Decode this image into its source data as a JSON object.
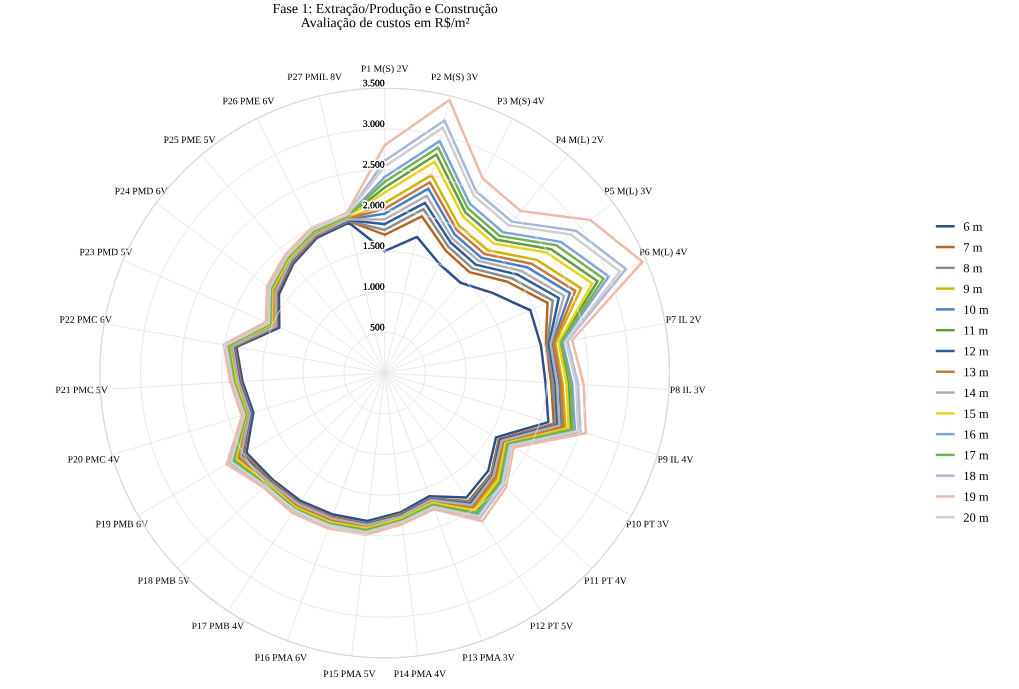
{
  "chart_data": {
    "type": "radar",
    "title": "Fase 1: Extração/Produção e Construção\nAvaliação de custos em R$/m²",
    "categories": [
      "P1 M(S) 2V",
      "P2 M(S) 3V",
      "P3 M(S) 4V",
      "P4 M(L) 2V",
      "P5 M(L) 3V",
      "P6 M(L) 4V",
      "P7 IL 2V",
      "P8 IL 3V",
      "P9 IL 4V",
      "P10 PT 3V",
      "P11 PT 4V",
      "P12 PT 5V",
      "P13 PMA 3V",
      "P14 PMA 4V",
      "P15 PMA 5V",
      "P16 PMA 6V",
      "P17 PMB 4V",
      "P18 PMB 5V",
      "P19 PMB 6V",
      "P20 PMC 4V",
      "P21 PMC 5V",
      "P22 PMC 6V",
      "P23 PMD 5V",
      "P24 PMD 6V",
      "P25 PME 5V",
      "P26 PME 6V",
      "P27 PMIL 8V"
    ],
    "series": [
      {
        "name": "6 m",
        "color": "#2f4f8a",
        "values": [
          1500,
          1720,
          1500,
          1450,
          1650,
          1950,
          1950,
          1980,
          2100,
          1580,
          1750,
          1830,
          1610,
          1720,
          1830,
          1850,
          1880,
          1900,
          1960,
          1685,
          1750,
          1850,
          1410,
          1620,
          1750,
          1860,
          1900
        ]
      },
      {
        "name": "7 m",
        "color": "#b5651d",
        "values": [
          1700,
          1980,
          1680,
          1620,
          1880,
          2180,
          2010,
          2050,
          2170,
          1620,
          1800,
          1880,
          1640,
          1740,
          1860,
          1880,
          1910,
          1920,
          2000,
          1710,
          1770,
          1870,
          1440,
          1650,
          1770,
          1880,
          1920
        ]
      },
      {
        "name": "8 m",
        "color": "#8c8c8c",
        "values": [
          1760,
          2070,
          1740,
          1680,
          1950,
          2250,
          2030,
          2070,
          2200,
          1630,
          1810,
          1900,
          1640,
          1750,
          1860,
          1890,
          1920,
          1930,
          2020,
          1710,
          1780,
          1880,
          1450,
          1660,
          1780,
          1890,
          1920
        ]
      },
      {
        "name": "9 m",
        "color": "#d4b106",
        "values": [
          2090,
          2500,
          2030,
          1970,
          2330,
          2630,
          2130,
          2190,
          2320,
          1690,
          1890,
          1990,
          1690,
          1790,
          1910,
          1930,
          1960,
          1970,
          2090,
          1750,
          1820,
          1920,
          1490,
          1700,
          1820,
          1920,
          1950
        ]
      },
      {
        "name": "10 m",
        "color": "#4a7fc1",
        "values": [
          1960,
          2330,
          1910,
          1850,
          2180,
          2480,
          2090,
          2150,
          2270,
          1670,
          1860,
          1950,
          1670,
          1770,
          1890,
          1910,
          1940,
          1950,
          2060,
          1740,
          1800,
          1910,
          1470,
          1680,
          1800,
          1910,
          1940
        ]
      },
      {
        "name": "11 m",
        "color": "#5f9e3a",
        "values": [
          2280,
          2760,
          2210,
          2140,
          2550,
          2850,
          2180,
          2260,
          2390,
          1730,
          1930,
          2040,
          1710,
          1810,
          1930,
          1960,
          1990,
          1990,
          2130,
          1770,
          1840,
          1950,
          1520,
          1730,
          1840,
          1940,
          1970
        ]
      },
      {
        "name": "12 m",
        "color": "#2e5b9a",
        "values": [
          1830,
          2150,
          1800,
          1740,
          2030,
          2330,
          2050,
          2100,
          2220,
          1640,
          1830,
          1920,
          1650,
          1760,
          1870,
          1900,
          1930,
          1940,
          2030,
          1720,
          1790,
          1890,
          1460,
          1670,
          1790,
          1900,
          1930
        ]
      },
      {
        "name": "13 m",
        "color": "#c9773b",
        "values": [
          2020,
          2410,
          1970,
          1910,
          2250,
          2550,
          2110,
          2170,
          2290,
          1680,
          1870,
          1970,
          1680,
          1780,
          1900,
          1920,
          1950,
          1960,
          2070,
          1740,
          1810,
          1910,
          1480,
          1690,
          1810,
          1920,
          1950
        ]
      },
      {
        "name": "14 m",
        "color": "#b0b0b0",
        "values": [
          1890,
          2240,
          1850,
          1800,
          2100,
          2400,
          2070,
          2120,
          2240,
          1660,
          1840,
          1940,
          1660,
          1770,
          1880,
          1900,
          1930,
          1950,
          2040,
          1730,
          1800,
          1900,
          1460,
          1670,
          1800,
          1900,
          1940
        ]
      },
      {
        "name": "15 m",
        "color": "#e8d21d",
        "values": [
          2220,
          2670,
          2150,
          2080,
          2480,
          2780,
          2170,
          2240,
          2360,
          1720,
          1920,
          2020,
          1700,
          1800,
          1920,
          1950,
          1980,
          1980,
          2110,
          1770,
          1830,
          1940,
          1510,
          1720,
          1830,
          1940,
          1970
        ]
      },
      {
        "name": "16 m",
        "color": "#7fa4d9",
        "values": [
          2410,
          2930,
          2330,
          2260,
          2700,
          3000,
          2220,
          2310,
          2440,
          1760,
          1960,
          2080,
          1730,
          1830,
          1950,
          1980,
          2010,
          2010,
          2160,
          1790,
          1860,
          1960,
          1540,
          1750,
          1860,
          1960,
          1980
        ]
      },
      {
        "name": "17 m",
        "color": "#72b34f",
        "values": [
          2350,
          2850,
          2270,
          2200,
          2630,
          2930,
          2200,
          2290,
          2410,
          1740,
          1950,
          2060,
          1720,
          1820,
          1940,
          1970,
          2000,
          2000,
          2140,
          1780,
          1850,
          1950,
          1530,
          1740,
          1850,
          1950,
          1980
        ]
      },
      {
        "name": "18 m",
        "color": "#a9b8d6",
        "values": [
          2610,
          3190,
          2500,
          2430,
          2930,
          3230,
          2280,
          2380,
          2510,
          1790,
          2010,
          2130,
          1760,
          1850,
          1980,
          2000,
          2030,
          2030,
          2200,
          1810,
          1880,
          1990,
          1560,
          1770,
          1880,
          1980,
          2000
        ]
      },
      {
        "name": "19 m",
        "color": "#efb9a8",
        "values": [
          2800,
          3450,
          2680,
          2600,
          3150,
          3450,
          2340,
          2450,
          2580,
          1830,
          2050,
          2180,
          1780,
          1870,
          2000,
          2030,
          2060,
          2050,
          2240,
          1830,
          1900,
          2010,
          1590,
          1800,
          1900,
          2000,
          2020
        ]
      },
      {
        "name": "20 m",
        "color": "#cfcfcf",
        "values": [
          2540,
          3100,
          2440,
          2370,
          2850,
          3150,
          2260,
          2360,
          2480,
          1780,
          1990,
          2110,
          1750,
          1840,
          1970,
          1990,
          2020,
          2020,
          2180,
          1800,
          1870,
          1980,
          1550,
          1760,
          1870,
          1970,
          2000
        ]
      }
    ],
    "ylim": [
      0,
      3500
    ],
    "yticks": [
      {
        "value": 500,
        "label": "500"
      },
      {
        "value": 1000,
        "label": "1.000"
      },
      {
        "value": 1500,
        "label": "1.500"
      },
      {
        "value": 2000,
        "label": "2.000"
      },
      {
        "value": 2500,
        "label": "2.500"
      },
      {
        "value": 3000,
        "label": "3.000"
      },
      {
        "value": 3500,
        "label": "3.500"
      }
    ],
    "grid": true,
    "legend": "right"
  }
}
